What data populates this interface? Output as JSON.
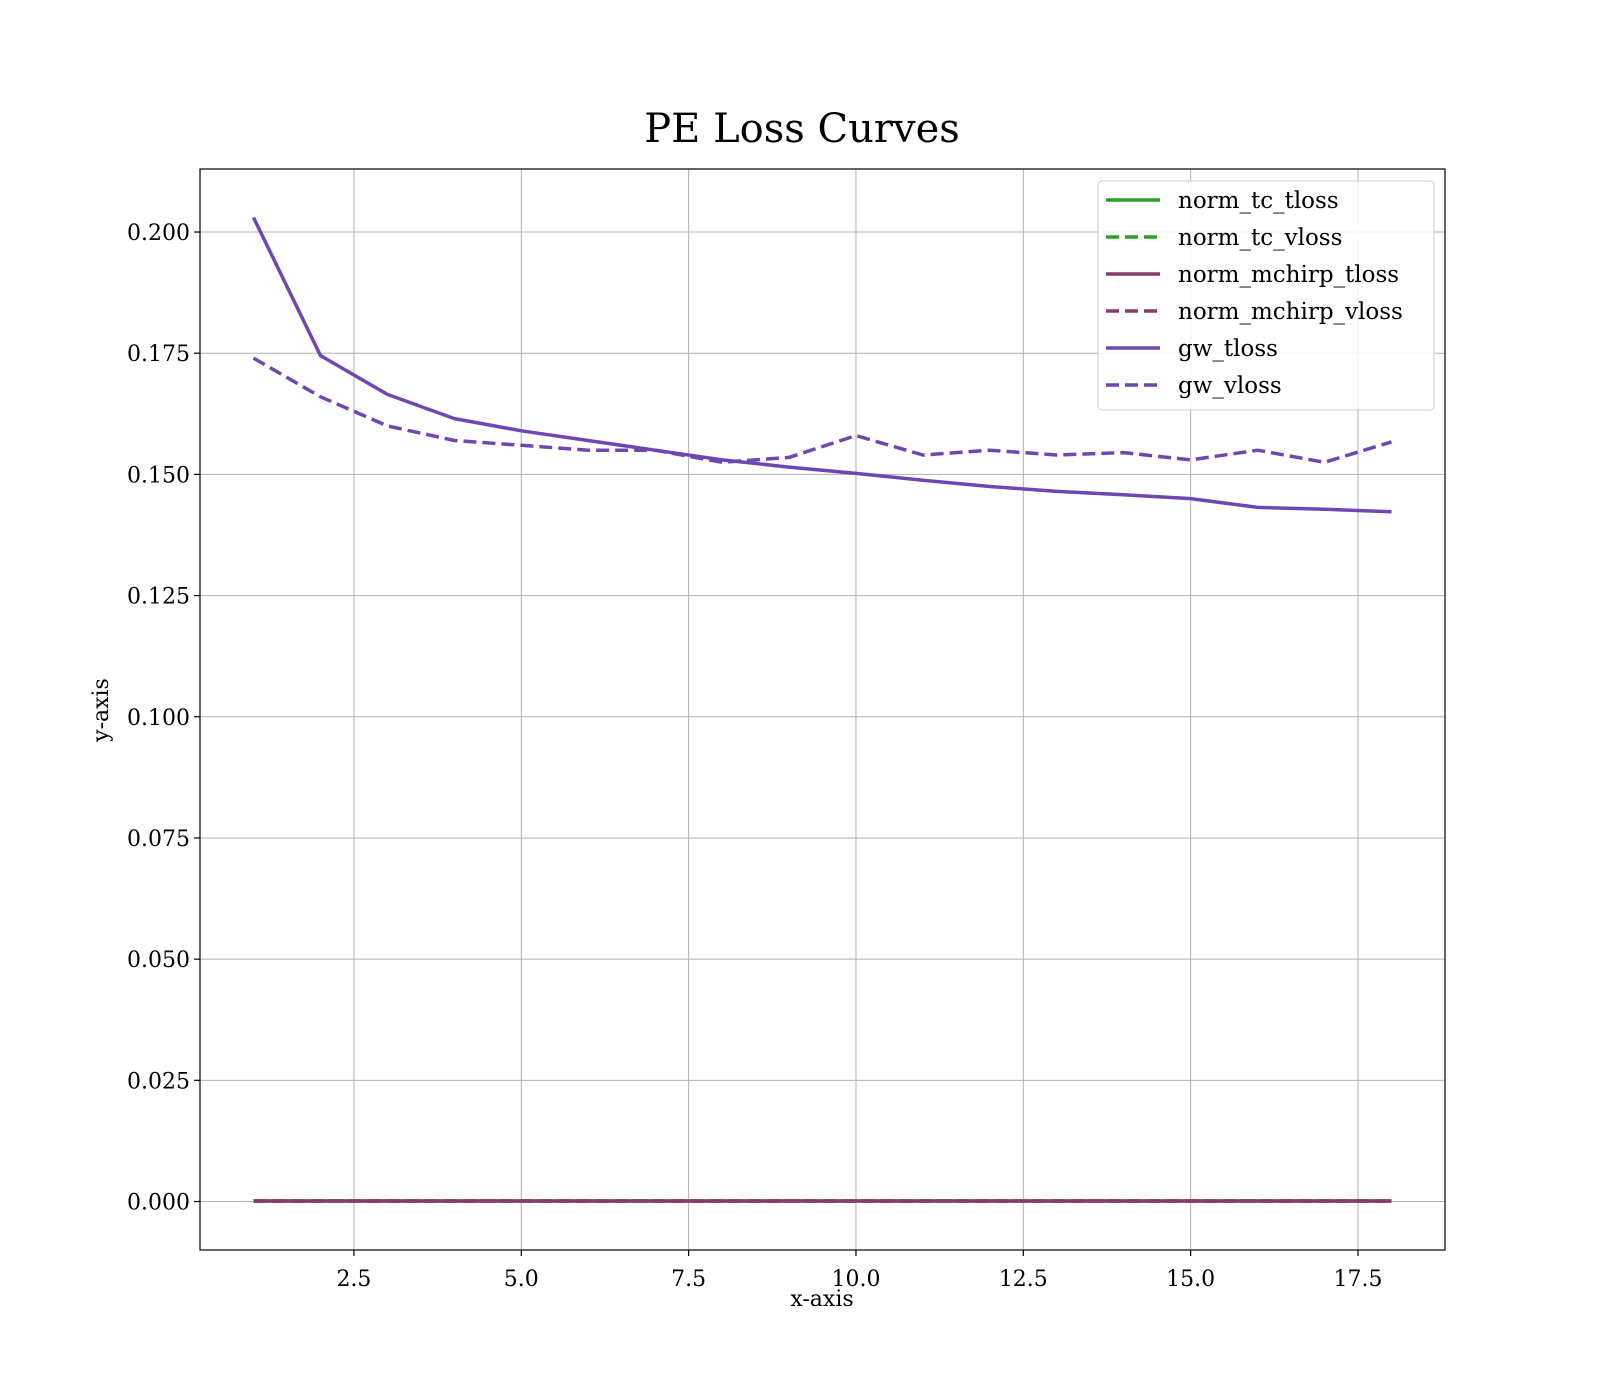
{
  "chart_data": {
    "type": "line",
    "title": "PE Loss Curves",
    "xlabel": "x-axis",
    "ylabel": "y-axis",
    "xlim": [
      0.2,
      18.8
    ],
    "ylim": [
      -0.01,
      0.213
    ],
    "xticks": [
      2.5,
      5.0,
      7.5,
      10.0,
      12.5,
      15.0,
      17.5
    ],
    "xtick_labels": [
      "2.5",
      "5.0",
      "7.5",
      "10.0",
      "12.5",
      "15.0",
      "17.5"
    ],
    "yticks": [
      0.0,
      0.025,
      0.05,
      0.075,
      0.1,
      0.125,
      0.15,
      0.175,
      0.2
    ],
    "ytick_labels": [
      "0.000",
      "0.025",
      "0.050",
      "0.075",
      "0.100",
      "0.125",
      "0.150",
      "0.175",
      "0.200"
    ],
    "grid": true,
    "legend_position": "top-right",
    "x": [
      1,
      2,
      3,
      4,
      5,
      6,
      7,
      8,
      9,
      10,
      11,
      12,
      13,
      14,
      15,
      16,
      17,
      18
    ],
    "series": [
      {
        "name": "norm_tc_tloss",
        "color": "#2ca02c",
        "dash": "solid",
        "values": [
          0.0001,
          0.0001,
          0.0001,
          0.0001,
          0.0001,
          0.0001,
          0.0001,
          0.0001,
          0.0001,
          0.0001,
          0.0001,
          0.0001,
          0.0001,
          0.0001,
          0.0001,
          0.0001,
          0.0001,
          0.0001
        ]
      },
      {
        "name": "norm_tc_vloss",
        "color": "#2ca02c",
        "dash": "dashed",
        "values": [
          0.0001,
          0.0001,
          0.0001,
          0.0001,
          0.0001,
          0.0001,
          0.0001,
          0.0001,
          0.0001,
          0.0001,
          0.0001,
          0.0001,
          0.0001,
          0.0001,
          0.0001,
          0.0001,
          0.0001,
          0.0001
        ]
      },
      {
        "name": "norm_mchirp_tloss",
        "color": "#8b3a6e",
        "dash": "solid",
        "values": [
          0.0001,
          0.0001,
          0.0001,
          0.0001,
          0.0001,
          0.0001,
          0.0001,
          0.0001,
          0.0001,
          0.0001,
          0.0001,
          0.0001,
          0.0001,
          0.0001,
          0.0001,
          0.0001,
          0.0001,
          0.0001
        ]
      },
      {
        "name": "norm_mchirp_vloss",
        "color": "#8b3a6e",
        "dash": "dashed",
        "values": [
          0.0001,
          0.0001,
          0.0001,
          0.0001,
          0.0001,
          0.0001,
          0.0001,
          0.0001,
          0.0001,
          0.0001,
          0.0001,
          0.0001,
          0.0001,
          0.0001,
          0.0001,
          0.0001,
          0.0001,
          0.0001
        ]
      },
      {
        "name": "gw_tloss",
        "color": "#7046b2",
        "dash": "solid",
        "values": [
          0.203,
          0.1745,
          0.1665,
          0.1615,
          0.159,
          0.157,
          0.155,
          0.153,
          0.1515,
          0.1502,
          0.1488,
          0.1475,
          0.1465,
          0.1458,
          0.145,
          0.1432,
          0.1428,
          0.1423
        ]
      },
      {
        "name": "gw_vloss",
        "color": "#7046b2",
        "dash": "dashed",
        "values": [
          0.174,
          0.166,
          0.16,
          0.157,
          0.156,
          0.155,
          0.155,
          0.1525,
          0.1535,
          0.158,
          0.154,
          0.155,
          0.154,
          0.1545,
          0.153,
          0.155,
          0.1525,
          0.1567
        ]
      }
    ]
  }
}
